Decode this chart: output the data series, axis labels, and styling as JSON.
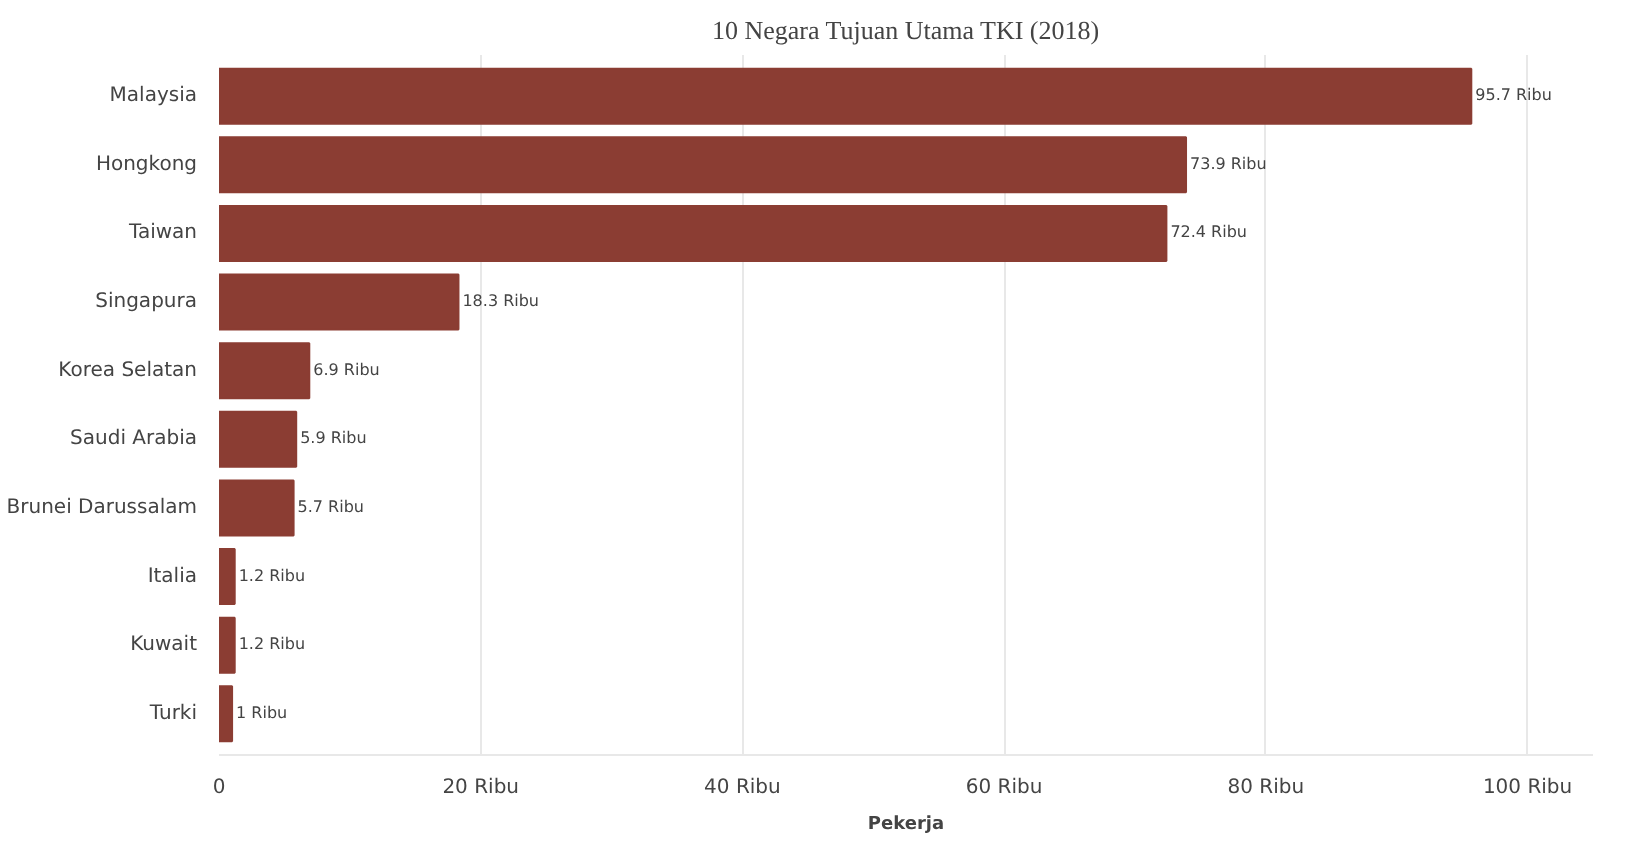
{
  "chart_data": {
    "type": "bar",
    "orientation": "horizontal",
    "title": "10 Negara Tujuan Utama TKI (2018)",
    "xlabel": "Pekerja",
    "categories": [
      "Malaysia",
      "Hongkong",
      "Taiwan",
      "Singapura",
      "Korea Selatan",
      "Saudi Arabia",
      "Brunei Darussalam",
      "Italia",
      "Kuwait",
      "Turki"
    ],
    "values": [
      95.7,
      73.9,
      72.4,
      18.3,
      6.9,
      5.9,
      5.7,
      1.2,
      1.2,
      1
    ],
    "value_labels": [
      "95.7 Ribu",
      "73.9 Ribu",
      "72.4 Ribu",
      "18.3 Ribu",
      "6.9 Ribu",
      "5.9 Ribu",
      "5.7 Ribu",
      "1.2 Ribu",
      "1.2 Ribu",
      "1 Ribu"
    ],
    "color": "#8b3d33",
    "xlim": [
      0,
      105
    ],
    "xticks": [
      0,
      {
        "value": 20,
        "label": "20 Ribu"
      },
      {
        "value": 40,
        "label": "40 Ribu"
      },
      {
        "value": 60,
        "label": "60 Ribu"
      },
      {
        "value": 80,
        "label": "80 Ribu"
      },
      {
        "value": 100,
        "label": "100 Ribu"
      }
    ],
    "grid": "x"
  }
}
